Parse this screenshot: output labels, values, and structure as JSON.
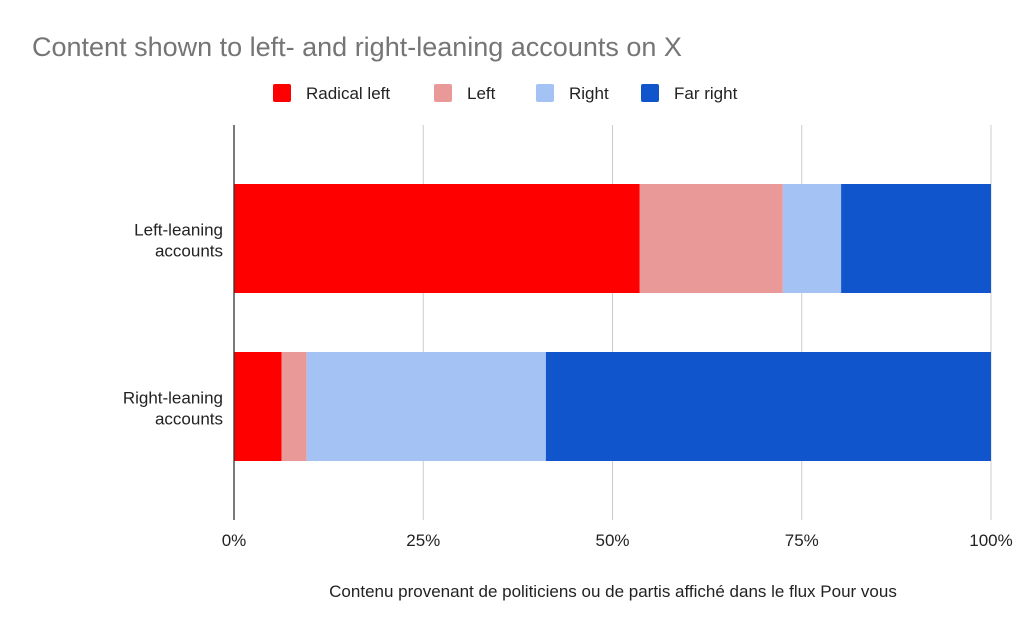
{
  "chart_data": {
    "type": "bar",
    "orientation": "horizontal",
    "stacked": "percent",
    "title": "Content shown to left- and right-leaning accounts on X",
    "xlabel": "Contenu provenant de politiciens ou de partis affiché dans le flux Pour vous",
    "ylabel": "",
    "categories": [
      "Left-leaning accounts",
      "Right-leaning accounts"
    ],
    "series": [
      {
        "name": "Radical left",
        "color": "#ff0000",
        "values": [
          53.6,
          6.3
        ]
      },
      {
        "name": "Left",
        "color": "#ea9999",
        "values": [
          18.9,
          3.3
        ]
      },
      {
        "name": "Right",
        "color": "#a4c2f4",
        "values": [
          7.7,
          31.6
        ]
      },
      {
        "name": "Far right",
        "color": "#1155cc",
        "values": [
          19.8,
          58.8
        ]
      }
    ],
    "xlim": [
      0,
      100
    ],
    "xticks": [
      "0%",
      "25%",
      "50%",
      "75%",
      "100%"
    ],
    "legend_position": "top",
    "grid": true
  }
}
